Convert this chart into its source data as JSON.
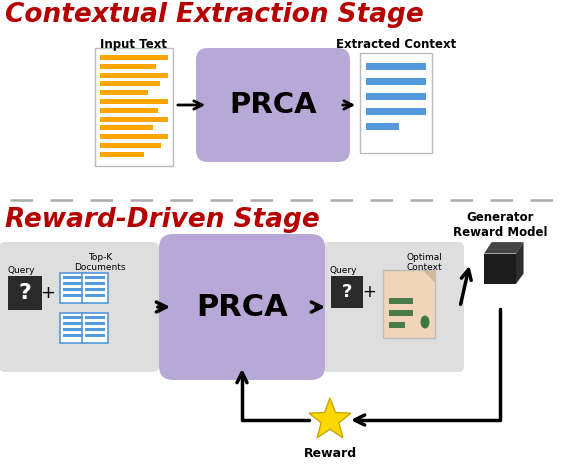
{
  "title_top": "Contextual Extraction Stage",
  "title_bottom": "Reward-Driven Stage",
  "title_color": "#B50000",
  "prca_color": "#B8A8D8",
  "prca_text": "PRCA",
  "bg_color": "#FFFFFF",
  "gray_box_color": "#DEDEDE",
  "orange_color": "#FFA500",
  "blue_doc_color": "#5599DD",
  "arrow_color": "#000000",
  "star_color": "#FFD700",
  "star_edge_color": "#C8A800",
  "doc_bg": "#FFFFFF",
  "doc_border": "#BBBBBB",
  "gen_dark": "#1A1A1A",
  "gen_mid": "#3A3A3A",
  "gen_light": "#555555",
  "peach_doc": "#F2D5B8",
  "green_lines": "#4A7A4A",
  "dashed_color": "#AAAAAA"
}
